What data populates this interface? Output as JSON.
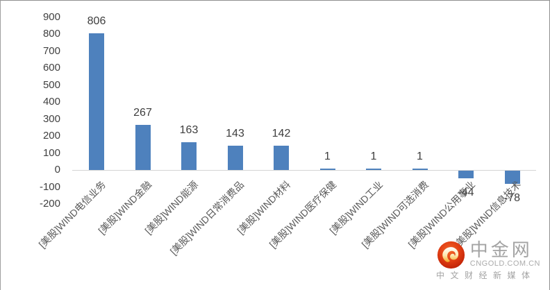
{
  "chart_data": {
    "type": "bar",
    "categories": [
      "[美股]WIND电信业务",
      "[美股]WIND金融",
      "[美股]WIND能源",
      "[美股]WIND日常消费品",
      "[美股]WIND材料",
      "[美股]WIND医疗保健",
      "[美股]WIND工业",
      "[美股]WIND可选消费",
      "[美股]WIND公用事业",
      "[美股]WIND信息技术"
    ],
    "values": [
      806,
      267,
      163,
      143,
      142,
      1,
      1,
      1,
      -44,
      -78
    ],
    "data_labels": [
      "806",
      "267",
      "163",
      "143",
      "142",
      "1",
      "1",
      "1",
      "-44",
      "-78"
    ],
    "title": "",
    "xlabel": "",
    "ylabel": "",
    "ylim": [
      -200,
      900
    ],
    "ytick_step": 100,
    "ytick_labels": [
      "900",
      "800",
      "700",
      "600",
      "500",
      "400",
      "300",
      "200",
      "100",
      "0",
      "-100",
      "-200"
    ],
    "grid": false,
    "legend": "none",
    "bar_color": "#4e81bd",
    "axis_line_color": "#d4d4d4",
    "ytick_color": "#404040",
    "category_label_color": "#595959",
    "data_label_color": "#3d3d3d"
  },
  "watermark": {
    "brand": "中金网",
    "domain": "CNGOLD.COM.CN",
    "tagline": "中文财经新媒体",
    "logo_color_outer": "#c42309",
    "logo_color_inner": "#ef5a22",
    "logo_swirl_top": "#ffffff",
    "logo_swirl_bottom": "#f7b733"
  }
}
